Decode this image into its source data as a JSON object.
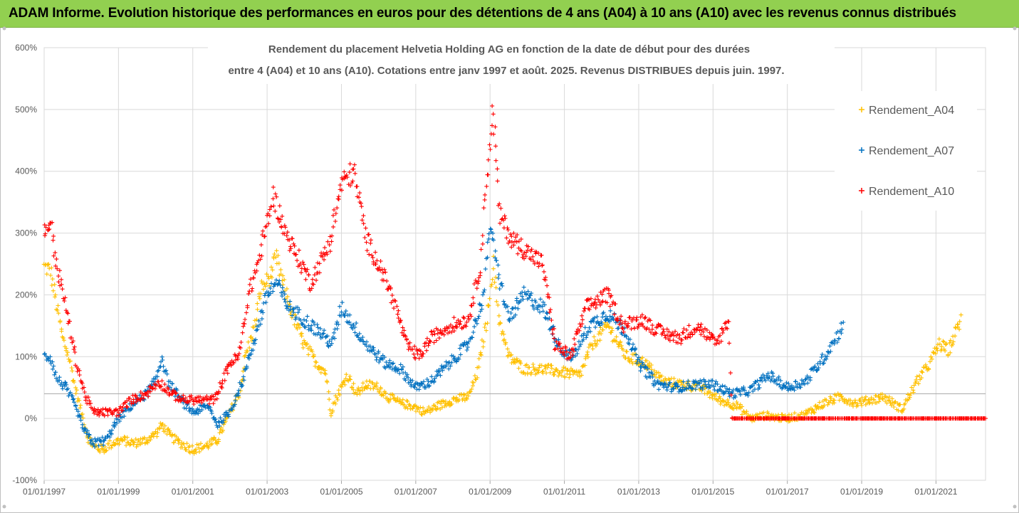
{
  "header": {
    "banner": "ADAM Informe. Evolution historique des performances en euros pour des détentions de 4 ans (A04) à 10 ans (A10) avec les revenus connus distribués"
  },
  "colors": {
    "banner_bg": "#92d050",
    "A04": "#ffc000",
    "A07": "#0070c0",
    "A10": "#ff0000",
    "grid": "#d9d9d9",
    "reference_line": "#a6a6a6"
  },
  "chart_data": {
    "type": "scatter",
    "title_line1": "Rendement du placement Helvetia Holding AG en fonction de la date de début pour des durées",
    "title_line2": "entre 4 (A04) et 10 ans (A10). Cotations entre janv 1997 et août. 2025. Revenus DISTRIBUES depuis juin. 1997.",
    "xlabel": "",
    "ylabel": "",
    "x_range": [
      "1997-01-01",
      "2022-05-01"
    ],
    "x_ticks": [
      "01/01/1997",
      "01/01/1999",
      "01/01/2001",
      "01/01/2003",
      "01/01/2005",
      "01/01/2007",
      "01/01/2009",
      "01/01/2011",
      "01/01/2013",
      "01/01/2015",
      "01/01/2017",
      "01/01/2019",
      "01/01/2021"
    ],
    "y_range": [
      -1.0,
      6.0
    ],
    "y_ticks": [
      "-100%",
      "0%",
      "100%",
      "200%",
      "300%",
      "400%",
      "500%",
      "600%"
    ],
    "reference_line_y": 0.4,
    "grid": "vertical and horizontal major gridlines",
    "legend_position": "right",
    "marker": "plus",
    "series": [
      {
        "name": "Rendement_A04",
        "color": "#ffc000",
        "end": "2021-09-01",
        "points": [
          [
            "1997-01-01",
            2.45
          ],
          [
            "1997-03-01",
            2.4
          ],
          [
            "1997-05-01",
            1.85
          ],
          [
            "1997-07-01",
            1.3
          ],
          [
            "1997-09-01",
            1.0
          ],
          [
            "1997-11-01",
            0.5
          ],
          [
            "1998-01-01",
            0.1
          ],
          [
            "1998-03-01",
            -0.3
          ],
          [
            "1998-05-01",
            -0.45
          ],
          [
            "1998-08-01",
            -0.5
          ],
          [
            "1998-11-01",
            -0.4
          ],
          [
            "1999-02-01",
            -0.35
          ],
          [
            "1999-06-01",
            -0.4
          ],
          [
            "1999-10-01",
            -0.35
          ],
          [
            "2000-01-01",
            -0.25
          ],
          [
            "2000-03-01",
            -0.1
          ],
          [
            "2000-06-01",
            -0.3
          ],
          [
            "2000-09-01",
            -0.4
          ],
          [
            "2001-01-01",
            -0.5
          ],
          [
            "2001-05-01",
            -0.45
          ],
          [
            "2001-09-01",
            -0.35
          ],
          [
            "2002-01-01",
            0.1
          ],
          [
            "2002-04-01",
            0.4
          ],
          [
            "2002-06-01",
            1.0
          ],
          [
            "2002-09-01",
            1.5
          ],
          [
            "2002-11-01",
            2.1
          ],
          [
            "2003-02-01",
            2.3
          ],
          [
            "2003-04-01",
            2.6
          ],
          [
            "2003-06-01",
            2.2
          ],
          [
            "2003-09-01",
            1.7
          ],
          [
            "2004-01-01",
            1.2
          ],
          [
            "2004-05-01",
            0.9
          ],
          [
            "2004-08-01",
            0.75
          ],
          [
            "2004-09-15",
            0.1
          ],
          [
            "2004-12-01",
            0.4
          ],
          [
            "2005-03-01",
            0.7
          ],
          [
            "2005-06-01",
            0.4
          ],
          [
            "2005-09-01",
            0.55
          ],
          [
            "2006-01-01",
            0.5
          ],
          [
            "2006-04-01",
            0.35
          ],
          [
            "2006-08-01",
            0.25
          ],
          [
            "2006-12-01",
            0.2
          ],
          [
            "2007-04-01",
            0.1
          ],
          [
            "2007-08-01",
            0.2
          ],
          [
            "2008-01-01",
            0.3
          ],
          [
            "2008-06-01",
            0.35
          ],
          [
            "2008-09-01",
            0.75
          ],
          [
            "2008-12-01",
            1.6
          ],
          [
            "2009-02-01",
            2.5
          ],
          [
            "2009-04-01",
            1.6
          ],
          [
            "2009-07-01",
            1.0
          ],
          [
            "2009-12-01",
            0.8
          ],
          [
            "2010-06-01",
            0.8
          ],
          [
            "2010-12-01",
            0.75
          ],
          [
            "2011-06-01",
            0.7
          ],
          [
            "2011-10-01",
            1.2
          ],
          [
            "2012-03-01",
            1.5
          ],
          [
            "2012-09-01",
            1.0
          ],
          [
            "2013-03-01",
            0.9
          ],
          [
            "2013-09-01",
            0.6
          ],
          [
            "2014-03-01",
            0.55
          ],
          [
            "2014-09-01",
            0.5
          ],
          [
            "2015-03-01",
            0.3
          ],
          [
            "2015-09-01",
            0.2
          ],
          [
            "2016-01-01",
            0.0
          ],
          [
            "2016-06-01",
            0.05
          ],
          [
            "2016-12-01",
            0.0
          ],
          [
            "2017-06-01",
            0.05
          ],
          [
            "2018-01-01",
            0.25
          ],
          [
            "2018-06-01",
            0.35
          ],
          [
            "2018-11-01",
            0.25
          ],
          [
            "2019-04-01",
            0.3
          ],
          [
            "2019-08-01",
            0.35
          ],
          [
            "2020-02-01",
            0.15
          ],
          [
            "2020-07-01",
            0.6
          ],
          [
            "2020-11-01",
            0.9
          ],
          [
            "2021-02-01",
            1.2
          ],
          [
            "2021-05-01",
            1.1
          ],
          [
            "2021-09-01",
            1.6
          ]
        ]
      },
      {
        "name": "Rendement_A07",
        "color": "#0070c0",
        "end": "2018-07-01",
        "points": [
          [
            "1997-01-01",
            1.0
          ],
          [
            "1997-03-01",
            1.0
          ],
          [
            "1997-05-01",
            0.65
          ],
          [
            "1997-08-01",
            0.5
          ],
          [
            "1997-11-01",
            0.2
          ],
          [
            "1998-02-01",
            -0.2
          ],
          [
            "1998-05-01",
            -0.4
          ],
          [
            "1998-09-01",
            -0.35
          ],
          [
            "1999-01-01",
            0.0
          ],
          [
            "1999-05-01",
            0.2
          ],
          [
            "1999-10-01",
            0.4
          ],
          [
            "2000-01-01",
            0.6
          ],
          [
            "2000-03-01",
            1.0
          ],
          [
            "2000-05-01",
            0.6
          ],
          [
            "2000-09-01",
            0.3
          ],
          [
            "2001-01-01",
            0.1
          ],
          [
            "2001-06-01",
            0.2
          ],
          [
            "2001-09-01",
            -0.1
          ],
          [
            "2002-01-01",
            0.1
          ],
          [
            "2002-05-01",
            0.6
          ],
          [
            "2002-09-01",
            1.3
          ],
          [
            "2003-01-01",
            2.0
          ],
          [
            "2003-04-01",
            2.2
          ],
          [
            "2003-08-01",
            1.8
          ],
          [
            "2004-01-01",
            1.6
          ],
          [
            "2004-06-01",
            1.4
          ],
          [
            "2004-10-01",
            1.2
          ],
          [
            "2005-01-01",
            1.8
          ],
          [
            "2005-05-01",
            1.5
          ],
          [
            "2005-09-01",
            1.2
          ],
          [
            "2006-03-01",
            0.9
          ],
          [
            "2006-08-01",
            0.8
          ],
          [
            "2007-01-01",
            0.5
          ],
          [
            "2007-06-01",
            0.6
          ],
          [
            "2007-12-01",
            0.9
          ],
          [
            "2008-06-01",
            1.2
          ],
          [
            "2008-11-01",
            2.0
          ],
          [
            "2009-01-01",
            3.2
          ],
          [
            "2009-03-01",
            2.5
          ],
          [
            "2009-07-01",
            1.6
          ],
          [
            "2009-12-01",
            2.0
          ],
          [
            "2010-06-01",
            1.8
          ],
          [
            "2010-12-01",
            1.1
          ],
          [
            "2011-04-01",
            1.0
          ],
          [
            "2011-09-01",
            1.5
          ],
          [
            "2012-03-01",
            1.7
          ],
          [
            "2012-09-01",
            1.4
          ],
          [
            "2013-01-01",
            0.9
          ],
          [
            "2013-07-01",
            0.55
          ],
          [
            "2014-01-01",
            0.5
          ],
          [
            "2014-07-01",
            0.55
          ],
          [
            "2015-01-01",
            0.55
          ],
          [
            "2015-07-01",
            0.4
          ],
          [
            "2016-01-01",
            0.45
          ],
          [
            "2016-07-01",
            0.7
          ],
          [
            "2017-01-01",
            0.5
          ],
          [
            "2017-07-01",
            0.6
          ],
          [
            "2018-01-01",
            1.0
          ],
          [
            "2018-07-01",
            1.5
          ]
        ]
      },
      {
        "name": "Rendement_A10",
        "color": "#ff0000",
        "end": "2022-05-01",
        "points": [
          [
            "1997-01-01",
            3.0
          ],
          [
            "1997-03-01",
            3.2
          ],
          [
            "1997-05-01",
            2.5
          ],
          [
            "1997-08-01",
            1.8
          ],
          [
            "1997-11-01",
            1.0
          ],
          [
            "1998-02-01",
            0.4
          ],
          [
            "1998-05-01",
            0.1
          ],
          [
            "1998-09-01",
            0.1
          ],
          [
            "1999-01-01",
            0.1
          ],
          [
            "1999-05-01",
            0.3
          ],
          [
            "1999-10-01",
            0.4
          ],
          [
            "2000-02-01",
            0.6
          ],
          [
            "2000-06-01",
            0.4
          ],
          [
            "2000-10-01",
            0.3
          ],
          [
            "2001-03-01",
            0.3
          ],
          [
            "2001-08-01",
            0.3
          ],
          [
            "2002-01-01",
            0.9
          ],
          [
            "2002-04-01",
            1.0
          ],
          [
            "2002-07-01",
            2.0
          ],
          [
            "2002-10-01",
            2.5
          ],
          [
            "2003-03-01",
            3.6
          ],
          [
            "2003-07-01",
            3.0
          ],
          [
            "2003-11-01",
            2.6
          ],
          [
            "2004-03-01",
            2.2
          ],
          [
            "2004-09-01",
            2.8
          ],
          [
            "2005-01-01",
            3.8
          ],
          [
            "2005-05-01",
            4.0
          ],
          [
            "2005-09-01",
            2.9
          ],
          [
            "2006-02-01",
            2.4
          ],
          [
            "2006-06-01",
            1.9
          ],
          [
            "2006-10-01",
            1.2
          ],
          [
            "2007-02-01",
            1.0
          ],
          [
            "2007-06-01",
            1.3
          ],
          [
            "2007-12-01",
            1.5
          ],
          [
            "2008-06-01",
            1.6
          ],
          [
            "2008-10-01",
            2.5
          ],
          [
            "2008-12-01",
            4.0
          ],
          [
            "2009-02-01",
            5.0
          ],
          [
            "2009-04-01",
            3.3
          ],
          [
            "2009-08-01",
            2.9
          ],
          [
            "2010-01-01",
            2.7
          ],
          [
            "2010-06-01",
            2.5
          ],
          [
            "2010-10-01",
            1.2
          ],
          [
            "2011-03-01",
            1.0
          ],
          [
            "2011-08-01",
            1.8
          ],
          [
            "2012-03-01",
            2.0
          ],
          [
            "2012-08-01",
            1.5
          ],
          [
            "2013-02-01",
            1.6
          ],
          [
            "2013-08-01",
            1.4
          ],
          [
            "2014-02-01",
            1.3
          ],
          [
            "2014-08-01",
            1.5
          ],
          [
            "2015-02-01",
            1.2
          ],
          [
            "2015-06-01",
            1.6
          ],
          [
            "2015-07-01",
            0.0
          ],
          [
            "2022-05-01",
            0.0
          ]
        ]
      }
    ]
  }
}
